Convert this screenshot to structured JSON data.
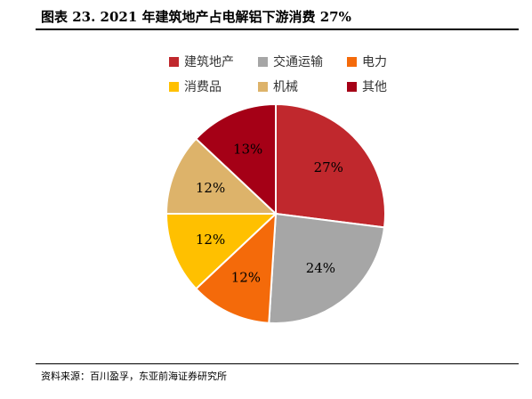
{
  "title": "图表 23. 2021 年建筑地产占电解铝下游消费 27%",
  "source": "资料来源：百川盈孚，东亚前海证券研究所",
  "chart_data": {
    "type": "pie",
    "categories": [
      "建筑地产",
      "交通运输",
      "电力",
      "消费品",
      "机械",
      "其他"
    ],
    "values": [
      27,
      24,
      12,
      12,
      12,
      13
    ],
    "value_labels": [
      "27%",
      "24%",
      "12%",
      "12%",
      "12%",
      "13%"
    ],
    "colors": [
      "#C0282D",
      "#A6A6A6",
      "#F46A0A",
      "#FFC000",
      "#DDB36A",
      "#A50016"
    ],
    "legend_position": "top",
    "start_angle_deg": 0,
    "direction": "clockwise"
  }
}
